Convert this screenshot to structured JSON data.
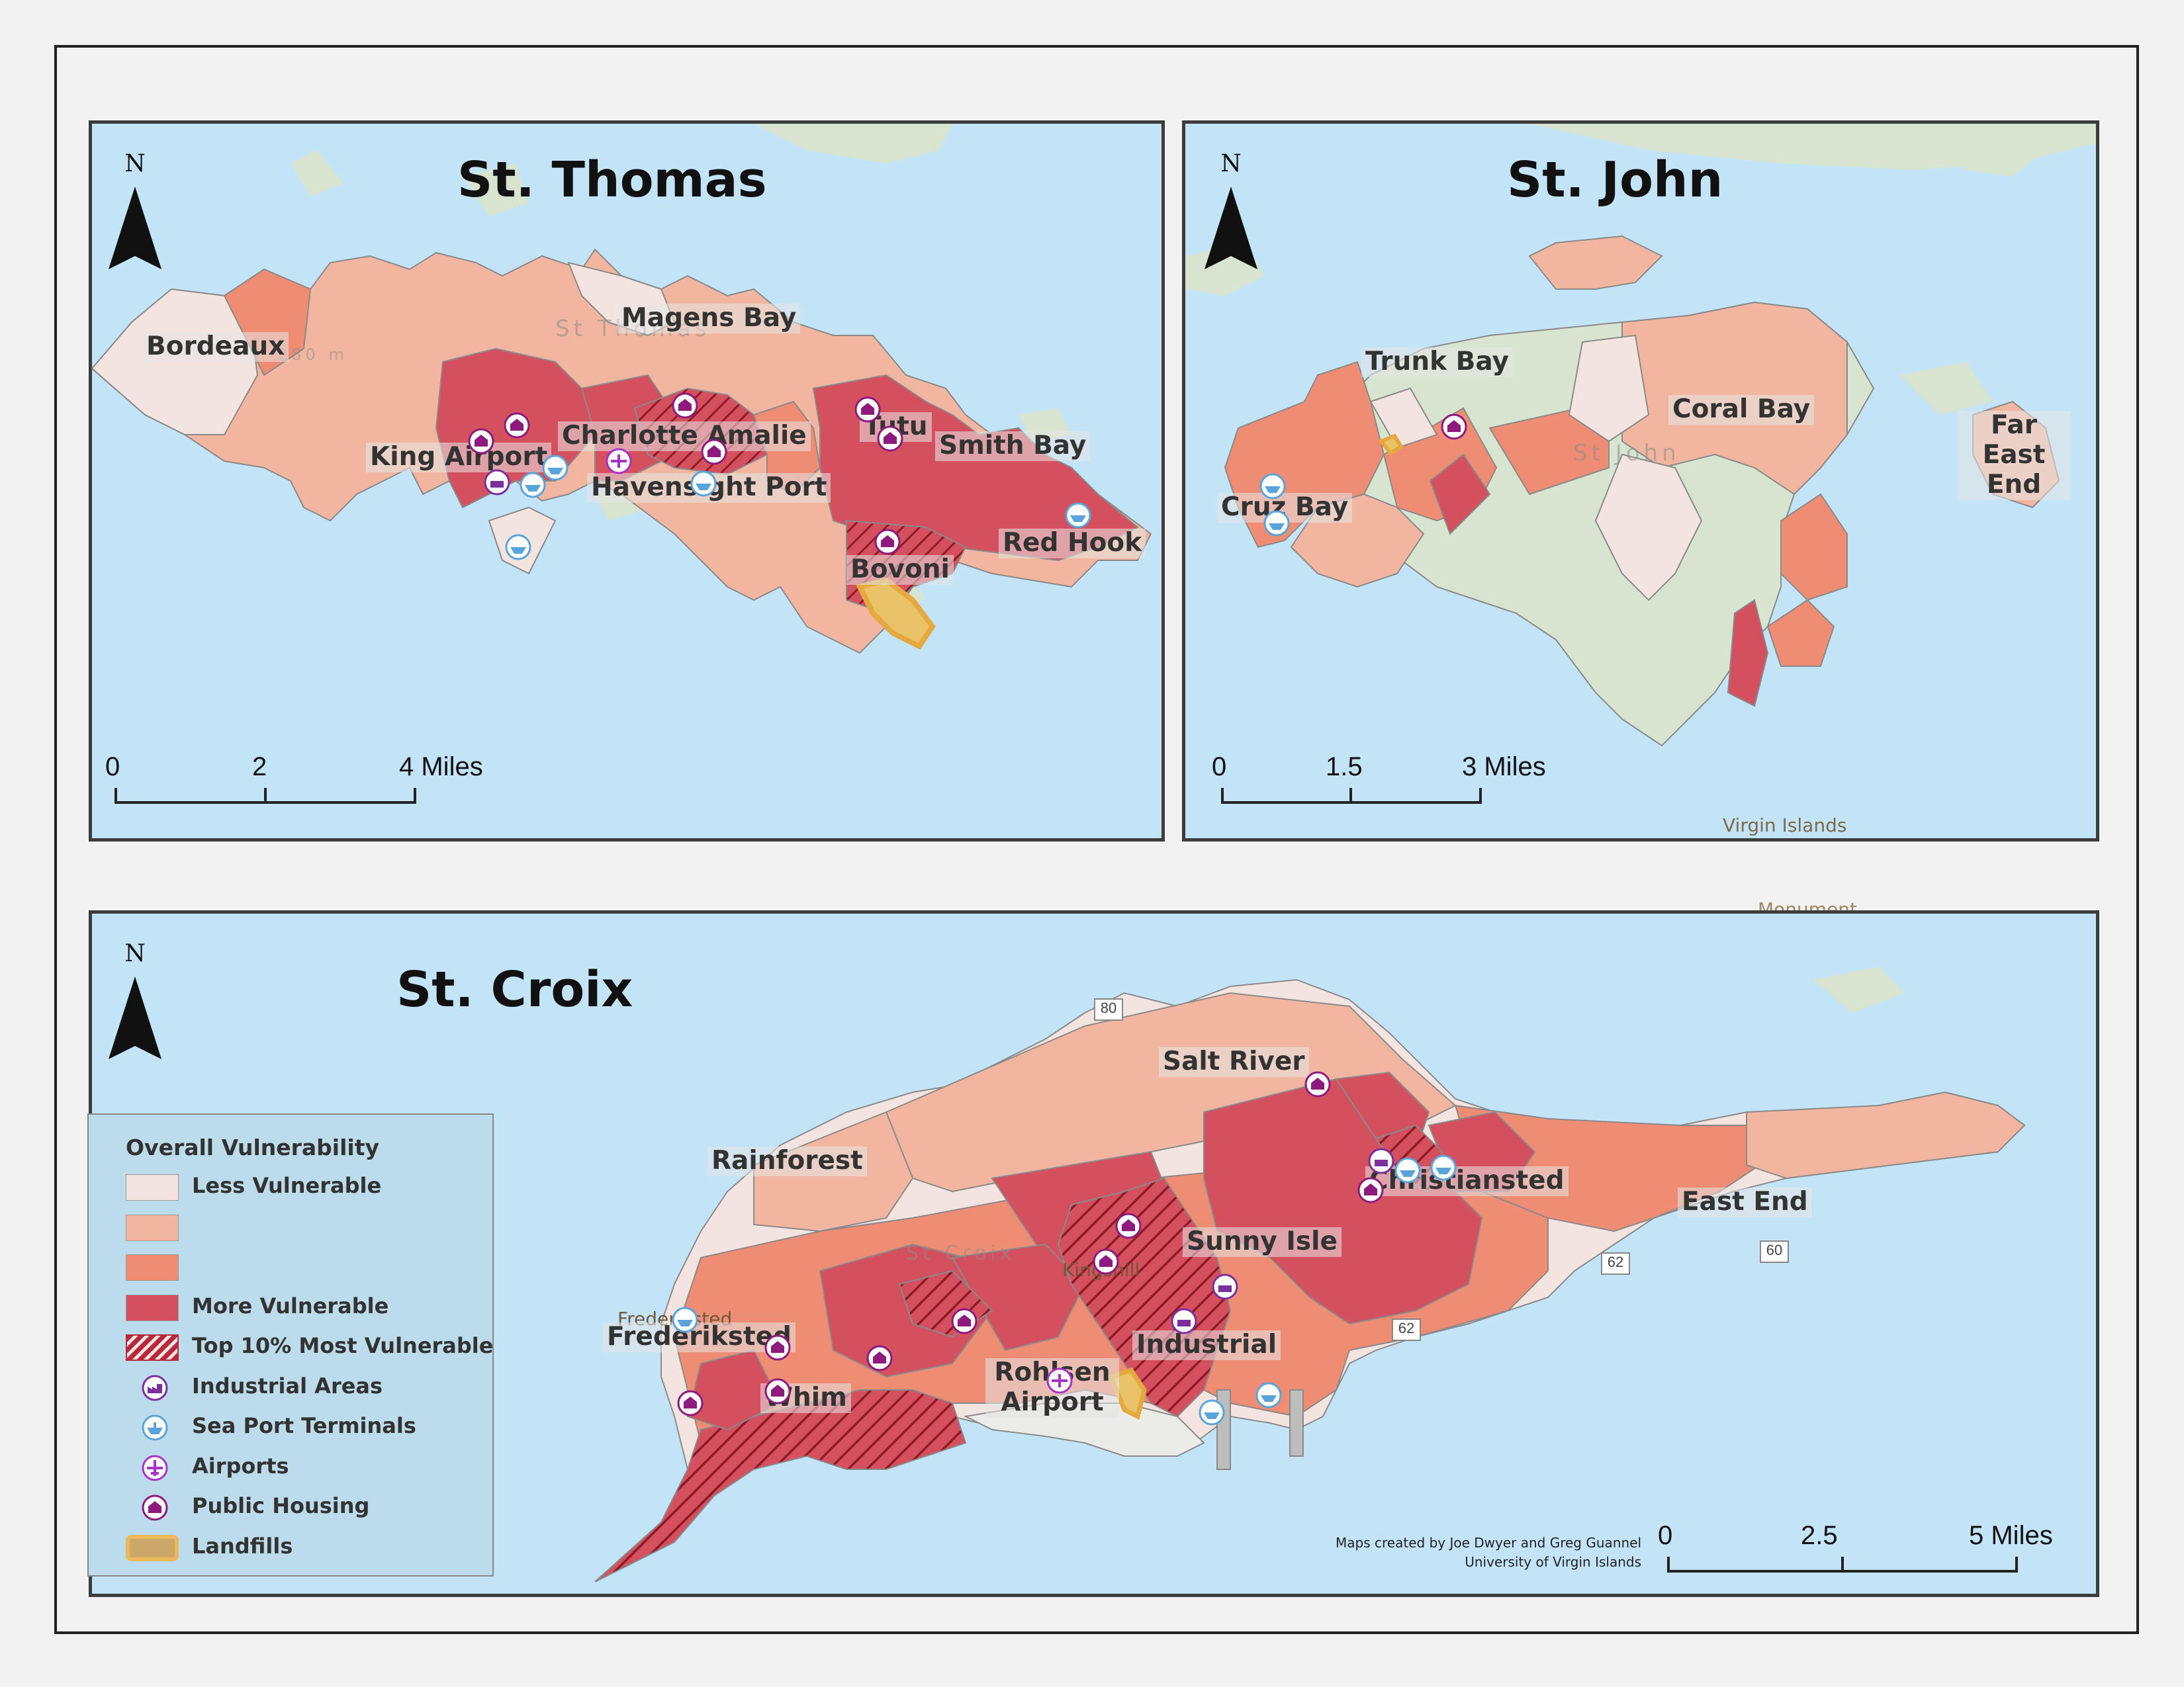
{
  "maps": {
    "st_thomas": {
      "title": "St. Thomas",
      "places": [
        "Bordeaux",
        "Magens Bay",
        "King Airport",
        "Charlotte Amalie",
        "Tutu",
        "Smith Bay",
        "Havensight Port",
        "Red Hook",
        "Bovoni"
      ],
      "basemap_text": [
        "St Thomas",
        "280 m",
        "Charlotte Amalie"
      ],
      "scale": {
        "labels": [
          "0",
          "2",
          "4 Miles"
        ]
      }
    },
    "st_john": {
      "title": "St. John",
      "places": [
        "Trunk Bay",
        "Coral Bay",
        "Far East End",
        "Cruz Bay"
      ],
      "basemap_text": [
        "St John",
        "Virgin Islands"
      ],
      "scale": {
        "labels": [
          "0",
          "1.5",
          "3 Miles"
        ]
      }
    },
    "st_croix": {
      "title": "St. Croix",
      "places": [
        "Salt River",
        "Rainforest",
        "Christiansted",
        "East End",
        "Sunny Isle",
        "Frederiksted",
        "Industrial",
        "Whim",
        "Rohlsen Airport"
      ],
      "basemap_text": [
        "St Croix",
        "Kingshill",
        "Frederiksted",
        "Monument"
      ],
      "road_shields": [
        "80",
        "62",
        "60",
        "62"
      ],
      "scale": {
        "labels": [
          "0",
          "2.5",
          "5 Miles"
        ]
      }
    }
  },
  "north_arrow": {
    "label": "N"
  },
  "legend": {
    "title": "Overall Vulnerability",
    "items": [
      {
        "label": "Less Vulnerable",
        "color": "#f4e4e0",
        "kind": "fill"
      },
      {
        "label": "",
        "color": "#f2b6a0",
        "kind": "fill"
      },
      {
        "label": "",
        "color": "#ef8c74",
        "kind": "fill"
      },
      {
        "label": "More Vulnerable",
        "color": "#d4505e",
        "kind": "fill"
      },
      {
        "label": "Top 10% Most Vulnerable",
        "color": "#b8283a",
        "kind": "hatch"
      },
      {
        "label": "Industrial Areas",
        "icon": "industrial-icon",
        "color": "#7c2f9e",
        "kind": "icon"
      },
      {
        "label": "Sea Port Terminals",
        "icon": "ship-icon",
        "color": "#5aa4dc",
        "kind": "icon"
      },
      {
        "label": "Airports",
        "icon": "airplane-icon",
        "color": "#a832c8",
        "kind": "icon"
      },
      {
        "label": "Public Housing",
        "icon": "house-icon",
        "color": "#8e1a7e",
        "kind": "icon"
      },
      {
        "label": "Landfills",
        "color": "#e9b95a",
        "kind": "landfill"
      }
    ]
  },
  "credit": {
    "line1": "Maps created by Joe Dwyer and Greg Guannel",
    "line2": "University of Virgin Islands"
  },
  "colors": {
    "water": "#c3e4f7",
    "land": "#d7e4cf",
    "less": "#f4e4e0",
    "low": "#f2b6a0",
    "mid": "#ef8c74",
    "high": "#d4505e",
    "top": "#b8283a"
  }
}
